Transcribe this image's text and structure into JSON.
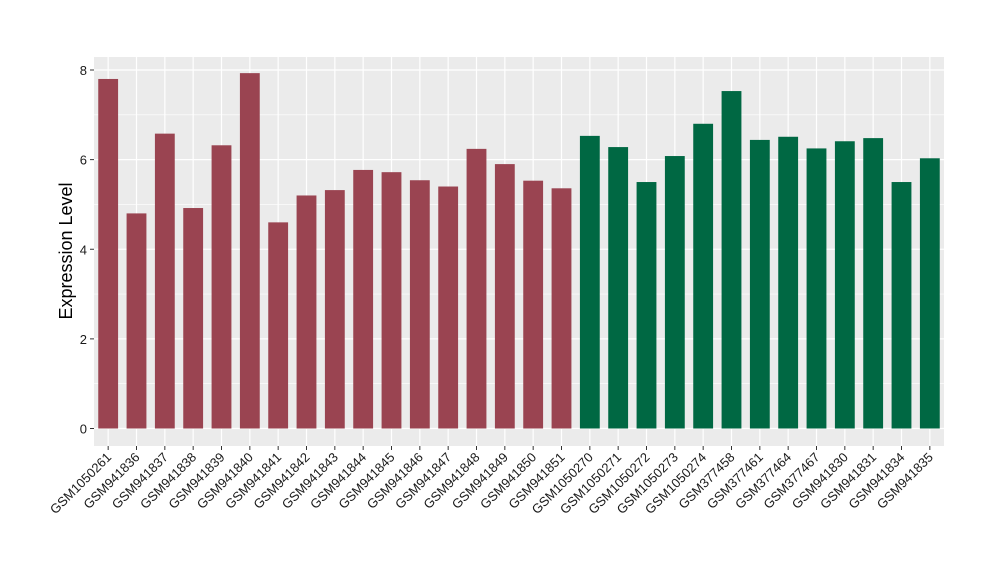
{
  "chart_data": {
    "type": "bar",
    "title": "",
    "xlabel": "",
    "ylabel": "Expression Level",
    "ylim": [
      0,
      8.4
    ],
    "yticks": [
      0,
      2,
      4,
      6,
      8
    ],
    "grid": true,
    "legend": "none",
    "colors": {
      "group_a": "#9A4451",
      "group_b": "#006843",
      "panel": "#EBEBEB",
      "gridline": "#FFFFFF"
    },
    "categories": [
      "GSM1050261",
      "GSM941836",
      "GSM941837",
      "GSM941838",
      "GSM941839",
      "GSM941840",
      "GSM941841",
      "GSM941842",
      "GSM941843",
      "GSM941844",
      "GSM941845",
      "GSM941846",
      "GSM941847",
      "GSM941848",
      "GSM941849",
      "GSM941850",
      "GSM941851",
      "GSM1050270",
      "GSM1050271",
      "GSM1050272",
      "GSM1050273",
      "GSM1050274",
      "GSM377458",
      "GSM377461",
      "GSM377464",
      "GSM377467",
      "GSM941830",
      "GSM941831",
      "GSM941834",
      "GSM941835"
    ],
    "values": [
      7.8,
      4.8,
      6.58,
      4.92,
      6.32,
      7.93,
      4.6,
      5.2,
      5.32,
      5.77,
      5.72,
      5.54,
      5.4,
      6.24,
      5.9,
      5.53,
      5.36,
      6.53,
      6.28,
      5.5,
      6.08,
      6.8,
      7.53,
      6.44,
      6.51,
      6.25,
      6.41,
      6.48,
      5.5,
      6.03
    ],
    "bar_groups": [
      "a",
      "a",
      "a",
      "a",
      "a",
      "a",
      "a",
      "a",
      "a",
      "a",
      "a",
      "a",
      "a",
      "a",
      "a",
      "a",
      "a",
      "b",
      "b",
      "b",
      "b",
      "b",
      "b",
      "b",
      "b",
      "b",
      "b",
      "b",
      "b",
      "b"
    ]
  }
}
